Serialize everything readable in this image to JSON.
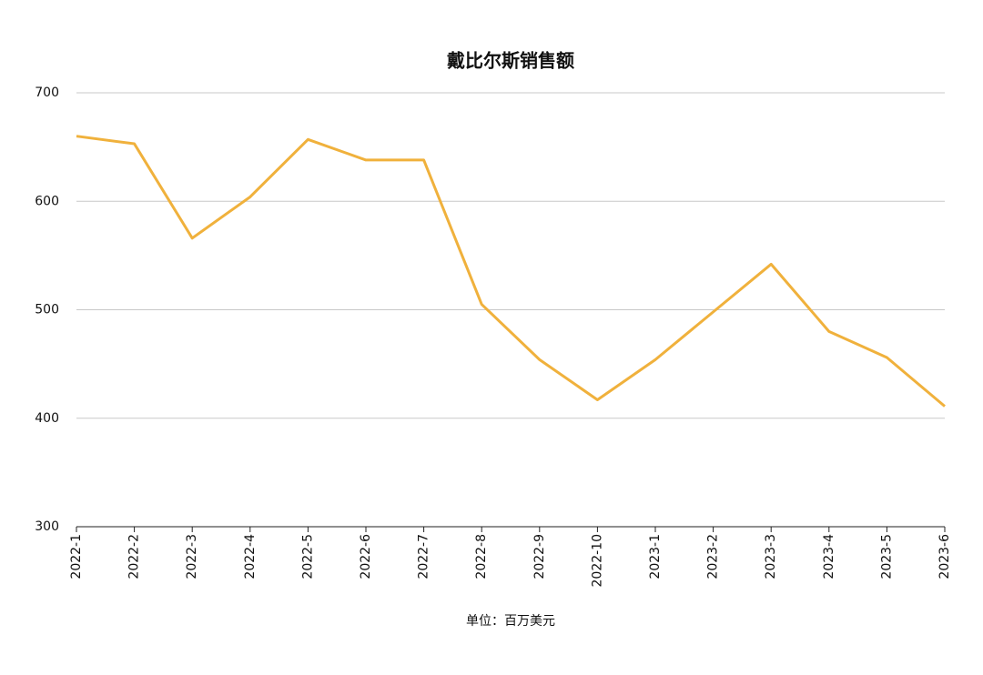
{
  "chart_data": {
    "type": "line",
    "title": "戴比尔斯销售额",
    "x_label": "单位：百万美元",
    "categories": [
      "2022-1",
      "2022-2",
      "2022-3",
      "2022-4",
      "2022-5",
      "2022-6",
      "2022-7",
      "2022-8",
      "2022-9",
      "2022-10",
      "2023-1",
      "2023-2",
      "2023-3",
      "2023-4",
      "2023-5",
      "2023-6"
    ],
    "series": [
      {
        "name": "销售额",
        "color": "#f0b13c",
        "values": [
          660,
          653,
          566,
          604,
          657,
          638,
          638,
          505,
          454,
          417,
          454,
          498,
          542,
          480,
          456,
          411
        ]
      }
    ],
    "ylim": [
      300,
      700
    ],
    "yticks": [
      300,
      400,
      500,
      600,
      700
    ],
    "grid": true
  }
}
